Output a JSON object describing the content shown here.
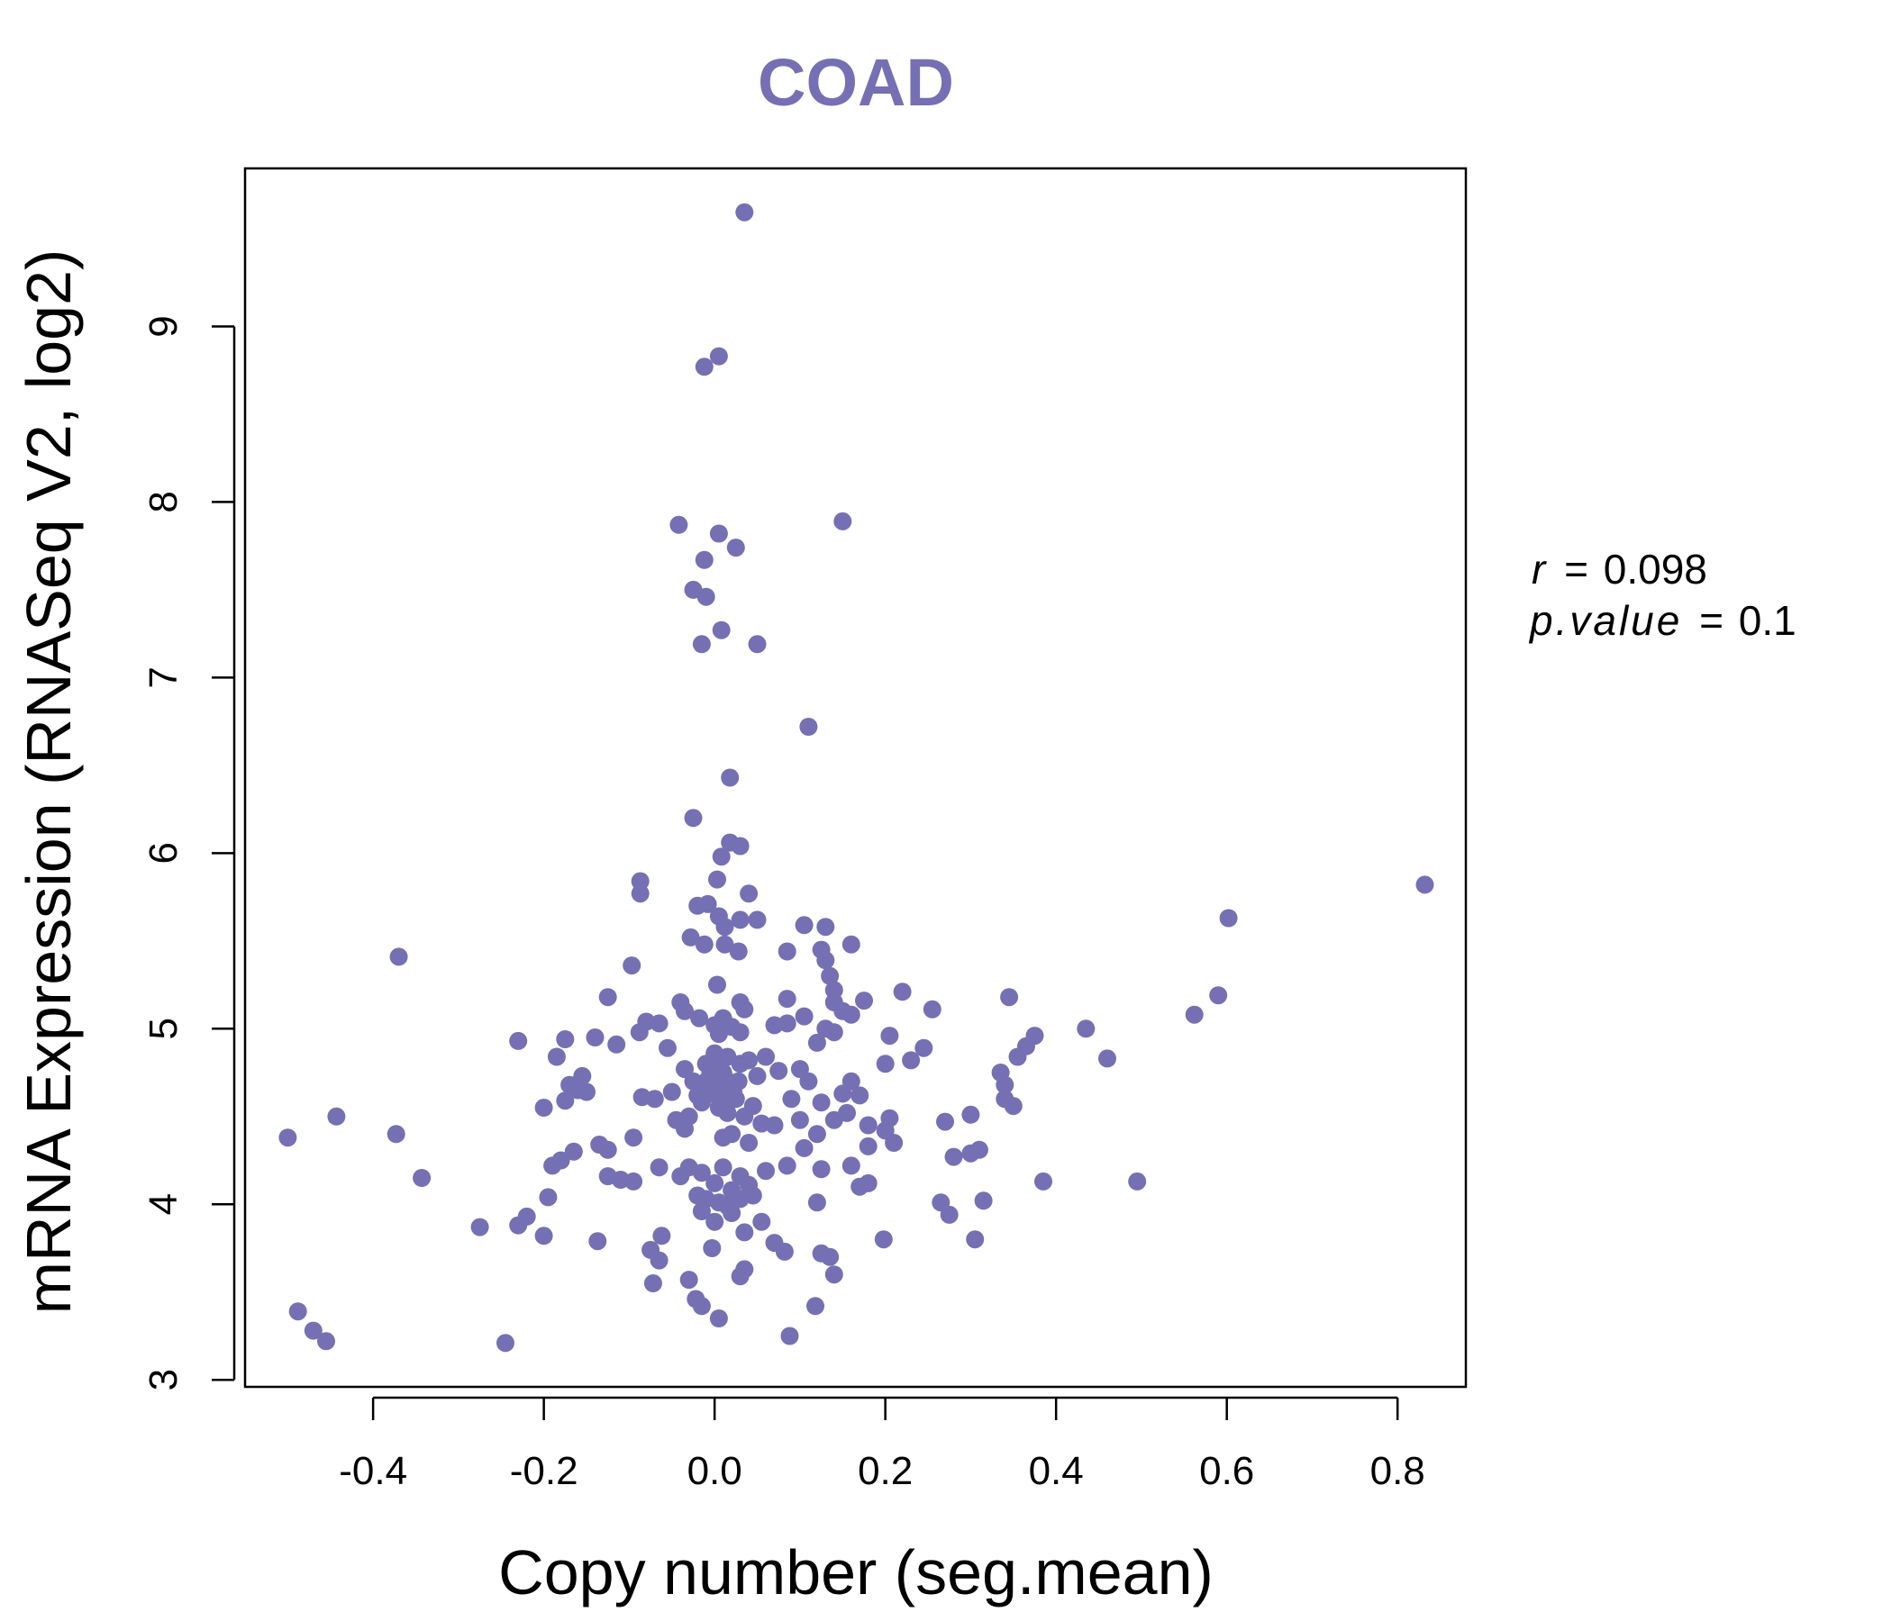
{
  "chart_data": {
    "type": "scatter",
    "title": "COAD",
    "xlabel": "Copy number (seg.mean)",
    "ylabel": "mRNA Expression (RNASeq V2, log2)",
    "xlim": [
      -0.55,
      0.88
    ],
    "ylim": [
      2.96,
      9.9
    ],
    "xticks": [
      -0.4,
      -0.2,
      0.0,
      0.2,
      0.4,
      0.6,
      0.8
    ],
    "xtick_labels": [
      "-0.4",
      "-0.2",
      "0.0",
      "0.2",
      "0.4",
      "0.6",
      "0.8"
    ],
    "yticks": [
      3,
      4,
      5,
      6,
      7,
      8,
      9
    ],
    "ytick_labels": [
      "3",
      "4",
      "5",
      "6",
      "7",
      "8",
      "9"
    ],
    "point_color": "#7570b3",
    "grid": false,
    "stats": {
      "r_label": "r",
      "r_value": "0.098",
      "p_label": "p.value",
      "p_value": "0.1"
    },
    "points": [
      {
        "x": 0.035,
        "y": 9.65
      },
      {
        "x": 0.005,
        "y": 8.83
      },
      {
        "x": -0.012,
        "y": 8.77
      },
      {
        "x": -0.042,
        "y": 7.87
      },
      {
        "x": 0.005,
        "y": 7.82
      },
      {
        "x": 0.15,
        "y": 7.89
      },
      {
        "x": 0.025,
        "y": 7.74
      },
      {
        "x": -0.012,
        "y": 7.67
      },
      {
        "x": -0.025,
        "y": 7.5
      },
      {
        "x": -0.01,
        "y": 7.46
      },
      {
        "x": 0.008,
        "y": 7.27
      },
      {
        "x": -0.015,
        "y": 7.19
      },
      {
        "x": 0.05,
        "y": 7.19
      },
      {
        "x": 0.11,
        "y": 6.72
      },
      {
        "x": 0.018,
        "y": 6.43
      },
      {
        "x": -0.025,
        "y": 6.2
      },
      {
        "x": 0.018,
        "y": 6.06
      },
      {
        "x": 0.03,
        "y": 6.04
      },
      {
        "x": 0.008,
        "y": 5.98
      },
      {
        "x": -0.087,
        "y": 5.84
      },
      {
        "x": -0.087,
        "y": 5.77
      },
      {
        "x": 0.003,
        "y": 5.85
      },
      {
        "x": 0.04,
        "y": 5.77
      },
      {
        "x": -0.02,
        "y": 5.7
      },
      {
        "x": -0.008,
        "y": 5.71
      },
      {
        "x": 0.005,
        "y": 5.64
      },
      {
        "x": 0.012,
        "y": 5.58
      },
      {
        "x": 0.03,
        "y": 5.62
      },
      {
        "x": 0.05,
        "y": 5.62
      },
      {
        "x": 0.105,
        "y": 5.59
      },
      {
        "x": 0.13,
        "y": 5.58
      },
      {
        "x": -0.028,
        "y": 5.52
      },
      {
        "x": -0.012,
        "y": 5.48
      },
      {
        "x": 0.012,
        "y": 5.48
      },
      {
        "x": 0.028,
        "y": 5.44
      },
      {
        "x": 0.085,
        "y": 5.44
      },
      {
        "x": 0.125,
        "y": 5.45
      },
      {
        "x": 0.16,
        "y": 5.48
      },
      {
        "x": 0.13,
        "y": 5.39
      },
      {
        "x": -0.37,
        "y": 5.41
      },
      {
        "x": -0.097,
        "y": 5.36
      },
      {
        "x": 0.003,
        "y": 5.25
      },
      {
        "x": 0.135,
        "y": 5.3
      },
      {
        "x": 0.14,
        "y": 5.22
      },
      {
        "x": 0.22,
        "y": 5.21
      },
      {
        "x": 0.345,
        "y": 5.18
      },
      {
        "x": -0.125,
        "y": 5.18
      },
      {
        "x": -0.04,
        "y": 5.15
      },
      {
        "x": 0.03,
        "y": 5.15
      },
      {
        "x": 0.085,
        "y": 5.17
      },
      {
        "x": 0.14,
        "y": 5.15
      },
      {
        "x": 0.175,
        "y": 5.16
      },
      {
        "x": 0.255,
        "y": 5.11
      },
      {
        "x": -0.035,
        "y": 5.1
      },
      {
        "x": -0.018,
        "y": 5.06
      },
      {
        "x": 0.01,
        "y": 5.06
      },
      {
        "x": 0.035,
        "y": 5.11
      },
      {
        "x": 0.105,
        "y": 5.07
      },
      {
        "x": 0.15,
        "y": 5.1
      },
      {
        "x": 0.16,
        "y": 5.08
      },
      {
        "x": -0.08,
        "y": 5.04
      },
      {
        "x": -0.065,
        "y": 5.03
      },
      {
        "x": -0.088,
        "y": 4.98
      },
      {
        "x": 0.0,
        "y": 5.02
      },
      {
        "x": 0.02,
        "y": 5.01
      },
      {
        "x": 0.07,
        "y": 5.02
      },
      {
        "x": 0.085,
        "y": 5.03
      },
      {
        "x": 0.13,
        "y": 5.0
      },
      {
        "x": 0.14,
        "y": 4.98
      },
      {
        "x": -0.23,
        "y": 4.93
      },
      {
        "x": -0.175,
        "y": 4.94
      },
      {
        "x": -0.14,
        "y": 4.95
      },
      {
        "x": -0.115,
        "y": 4.91
      },
      {
        "x": -0.055,
        "y": 4.89
      },
      {
        "x": 0.005,
        "y": 4.97
      },
      {
        "x": 0.03,
        "y": 4.98
      },
      {
        "x": 0.12,
        "y": 4.92
      },
      {
        "x": 0.205,
        "y": 4.96
      },
      {
        "x": 0.245,
        "y": 4.89
      },
      {
        "x": 0.435,
        "y": 5.0
      },
      {
        "x": 0.375,
        "y": 4.96
      },
      {
        "x": 0.365,
        "y": 4.9
      },
      {
        "x": 0.355,
        "y": 4.84
      },
      {
        "x": 0.562,
        "y": 5.08
      },
      {
        "x": 0.59,
        "y": 5.19
      },
      {
        "x": 0.602,
        "y": 5.63
      },
      {
        "x": 0.832,
        "y": 5.82
      },
      {
        "x": 0.46,
        "y": 4.83
      },
      {
        "x": 0.335,
        "y": 4.75
      },
      {
        "x": 0.34,
        "y": 4.68
      },
      {
        "x": 0.34,
        "y": 4.6
      },
      {
        "x": 0.35,
        "y": 4.56
      },
      {
        "x": -0.185,
        "y": 4.84
      },
      {
        "x": -0.155,
        "y": 4.73
      },
      {
        "x": -0.17,
        "y": 4.68
      },
      {
        "x": -0.16,
        "y": 4.65
      },
      {
        "x": -0.15,
        "y": 4.64
      },
      {
        "x": -0.175,
        "y": 4.59
      },
      {
        "x": -0.2,
        "y": 4.55
      },
      {
        "x": -0.085,
        "y": 4.61
      },
      {
        "x": -0.07,
        "y": 4.6
      },
      {
        "x": -0.05,
        "y": 4.64
      },
      {
        "x": -0.035,
        "y": 4.77
      },
      {
        "x": -0.025,
        "y": 4.7
      },
      {
        "x": -0.01,
        "y": 4.8
      },
      {
        "x": 0.0,
        "y": 4.86
      },
      {
        "x": 0.01,
        "y": 4.75
      },
      {
        "x": 0.015,
        "y": 4.84
      },
      {
        "x": 0.02,
        "y": 4.68
      },
      {
        "x": 0.03,
        "y": 4.8
      },
      {
        "x": 0.04,
        "y": 4.82
      },
      {
        "x": 0.05,
        "y": 4.73
      },
      {
        "x": 0.06,
        "y": 4.84
      },
      {
        "x": 0.075,
        "y": 4.76
      },
      {
        "x": 0.09,
        "y": 4.6
      },
      {
        "x": 0.1,
        "y": 4.77
      },
      {
        "x": 0.11,
        "y": 4.7
      },
      {
        "x": 0.125,
        "y": 4.58
      },
      {
        "x": 0.15,
        "y": 4.63
      },
      {
        "x": 0.16,
        "y": 4.7
      },
      {
        "x": 0.17,
        "y": 4.62
      },
      {
        "x": 0.2,
        "y": 4.8
      },
      {
        "x": 0.23,
        "y": 4.82
      },
      {
        "x": -0.005,
        "y": 4.63
      },
      {
        "x": 0.005,
        "y": 4.55
      },
      {
        "x": 0.015,
        "y": 4.52
      },
      {
        "x": 0.025,
        "y": 4.6
      },
      {
        "x": 0.035,
        "y": 4.5
      },
      {
        "x": 0.045,
        "y": 4.56
      },
      {
        "x": -0.015,
        "y": 4.58
      },
      {
        "x": -0.03,
        "y": 4.5
      },
      {
        "x": -0.045,
        "y": 4.48
      },
      {
        "x": 0.055,
        "y": 4.46
      },
      {
        "x": 0.07,
        "y": 4.45
      },
      {
        "x": 0.1,
        "y": 4.48
      },
      {
        "x": 0.14,
        "y": 4.48
      },
      {
        "x": 0.155,
        "y": 4.52
      },
      {
        "x": 0.18,
        "y": 4.45
      },
      {
        "x": 0.2,
        "y": 4.42
      },
      {
        "x": 0.205,
        "y": 4.49
      },
      {
        "x": 0.27,
        "y": 4.47
      },
      {
        "x": 0.3,
        "y": 4.51
      },
      {
        "x": -0.035,
        "y": 4.43
      },
      {
        "x": -0.095,
        "y": 4.38
      },
      {
        "x": 0.01,
        "y": 4.38
      },
      {
        "x": 0.02,
        "y": 4.4
      },
      {
        "x": 0.04,
        "y": 4.35
      },
      {
        "x": 0.105,
        "y": 4.32
      },
      {
        "x": 0.12,
        "y": 4.4
      },
      {
        "x": 0.18,
        "y": 4.33
      },
      {
        "x": 0.21,
        "y": 4.35
      },
      {
        "x": -0.135,
        "y": 4.34
      },
      {
        "x": -0.125,
        "y": 4.31
      },
      {
        "x": -0.165,
        "y": 4.3
      },
      {
        "x": -0.18,
        "y": 4.25
      },
      {
        "x": -0.19,
        "y": 4.22
      },
      {
        "x": -0.065,
        "y": 4.21
      },
      {
        "x": -0.03,
        "y": 4.21
      },
      {
        "x": -0.015,
        "y": 4.18
      },
      {
        "x": 0.01,
        "y": 4.21
      },
      {
        "x": 0.03,
        "y": 4.16
      },
      {
        "x": 0.06,
        "y": 4.19
      },
      {
        "x": 0.085,
        "y": 4.22
      },
      {
        "x": 0.125,
        "y": 4.2
      },
      {
        "x": 0.16,
        "y": 4.22
      },
      {
        "x": 0.17,
        "y": 4.1
      },
      {
        "x": 0.18,
        "y": 4.12
      },
      {
        "x": 0.28,
        "y": 4.27
      },
      {
        "x": 0.3,
        "y": 4.29
      },
      {
        "x": 0.31,
        "y": 4.31
      },
      {
        "x": 0.385,
        "y": 4.13
      },
      {
        "x": 0.495,
        "y": 4.13
      },
      {
        "x": -0.125,
        "y": 4.16
      },
      {
        "x": -0.11,
        "y": 4.14
      },
      {
        "x": -0.095,
        "y": 4.13
      },
      {
        "x": -0.04,
        "y": 4.16
      },
      {
        "x": 0.0,
        "y": 4.12
      },
      {
        "x": 0.02,
        "y": 4.08
      },
      {
        "x": 0.04,
        "y": 4.11
      },
      {
        "x": -0.02,
        "y": 4.05
      },
      {
        "x": -0.01,
        "y": 4.03
      },
      {
        "x": 0.005,
        "y": 4.01
      },
      {
        "x": 0.015,
        "y": 3.99
      },
      {
        "x": 0.03,
        "y": 4.03
      },
      {
        "x": 0.045,
        "y": 4.05
      },
      {
        "x": 0.12,
        "y": 4.01
      },
      {
        "x": 0.265,
        "y": 4.01
      },
      {
        "x": 0.275,
        "y": 3.94
      },
      {
        "x": 0.315,
        "y": 4.02
      },
      {
        "x": -0.195,
        "y": 4.04
      },
      {
        "x": -0.22,
        "y": 3.93
      },
      {
        "x": -0.23,
        "y": 3.88
      },
      {
        "x": -0.275,
        "y": 3.87
      },
      {
        "x": -0.2,
        "y": 3.82
      },
      {
        "x": -0.137,
        "y": 3.79
      },
      {
        "x": -0.015,
        "y": 3.96
      },
      {
        "x": 0.0,
        "y": 3.9
      },
      {
        "x": 0.02,
        "y": 3.95
      },
      {
        "x": 0.055,
        "y": 3.9
      },
      {
        "x": 0.035,
        "y": 3.84
      },
      {
        "x": -0.062,
        "y": 3.82
      },
      {
        "x": -0.075,
        "y": 3.74
      },
      {
        "x": -0.065,
        "y": 3.68
      },
      {
        "x": -0.003,
        "y": 3.75
      },
      {
        "x": 0.07,
        "y": 3.78
      },
      {
        "x": 0.082,
        "y": 3.73
      },
      {
        "x": 0.125,
        "y": 3.72
      },
      {
        "x": 0.135,
        "y": 3.7
      },
      {
        "x": 0.14,
        "y": 3.6
      },
      {
        "x": 0.198,
        "y": 3.8
      },
      {
        "x": 0.305,
        "y": 3.8
      },
      {
        "x": -0.03,
        "y": 3.57
      },
      {
        "x": -0.072,
        "y": 3.55
      },
      {
        "x": 0.035,
        "y": 3.63
      },
      {
        "x": 0.03,
        "y": 3.59
      },
      {
        "x": -0.022,
        "y": 3.46
      },
      {
        "x": -0.015,
        "y": 3.42
      },
      {
        "x": 0.005,
        "y": 3.35
      },
      {
        "x": 0.118,
        "y": 3.42
      },
      {
        "x": 0.088,
        "y": 3.25
      },
      {
        "x": -0.245,
        "y": 3.21
      },
      {
        "x": -0.488,
        "y": 3.39
      },
      {
        "x": -0.47,
        "y": 3.28
      },
      {
        "x": -0.455,
        "y": 3.22
      },
      {
        "x": -0.5,
        "y": 4.38
      },
      {
        "x": -0.443,
        "y": 4.5
      },
      {
        "x": -0.373,
        "y": 4.4
      },
      {
        "x": -0.343,
        "y": 4.15
      },
      {
        "x": -0.01,
        "y": 4.7
      },
      {
        "x": 0.0,
        "y": 4.66
      },
      {
        "x": 0.008,
        "y": 4.62
      },
      {
        "x": -0.005,
        "y": 4.75
      },
      {
        "x": 0.012,
        "y": 4.72
      },
      {
        "x": 0.022,
        "y": 4.64
      },
      {
        "x": -0.02,
        "y": 4.62
      },
      {
        "x": 0.002,
        "y": 4.8
      },
      {
        "x": 0.016,
        "y": 4.58
      },
      {
        "x": 0.006,
        "y": 4.69
      },
      {
        "x": -0.012,
        "y": 4.66
      },
      {
        "x": 0.028,
        "y": 4.7
      }
    ]
  }
}
